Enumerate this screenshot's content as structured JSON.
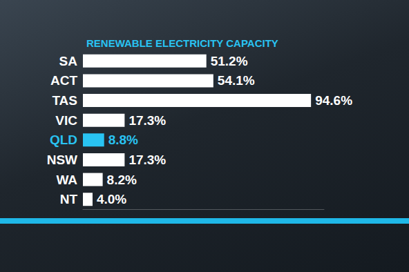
{
  "chart_data": {
    "type": "bar",
    "title": "RENEWABLE ELECTRICITY CAPACITY",
    "orientation": "horizontal",
    "categories": [
      "SA",
      "ACT",
      "TAS",
      "VIC",
      "QLD",
      "NSW",
      "WA",
      "NT"
    ],
    "values": [
      51.2,
      54.1,
      94.6,
      17.3,
      8.8,
      17.3,
      8.2,
      4.0
    ],
    "value_labels": [
      "51.2%",
      "54.1%",
      "94.6%",
      "17.3%",
      "8.8%",
      "17.3%",
      "8.2%",
      "4.0%"
    ],
    "colors": [
      "#ffffff",
      "#ffffff",
      "#ffffff",
      "#ffffff",
      "#29c3f2",
      "#ffffff",
      "#ffffff",
      "#ffffff"
    ],
    "xlim": [
      0,
      100
    ],
    "data_labels": true,
    "tick_labels": "y",
    "grid": false
  }
}
